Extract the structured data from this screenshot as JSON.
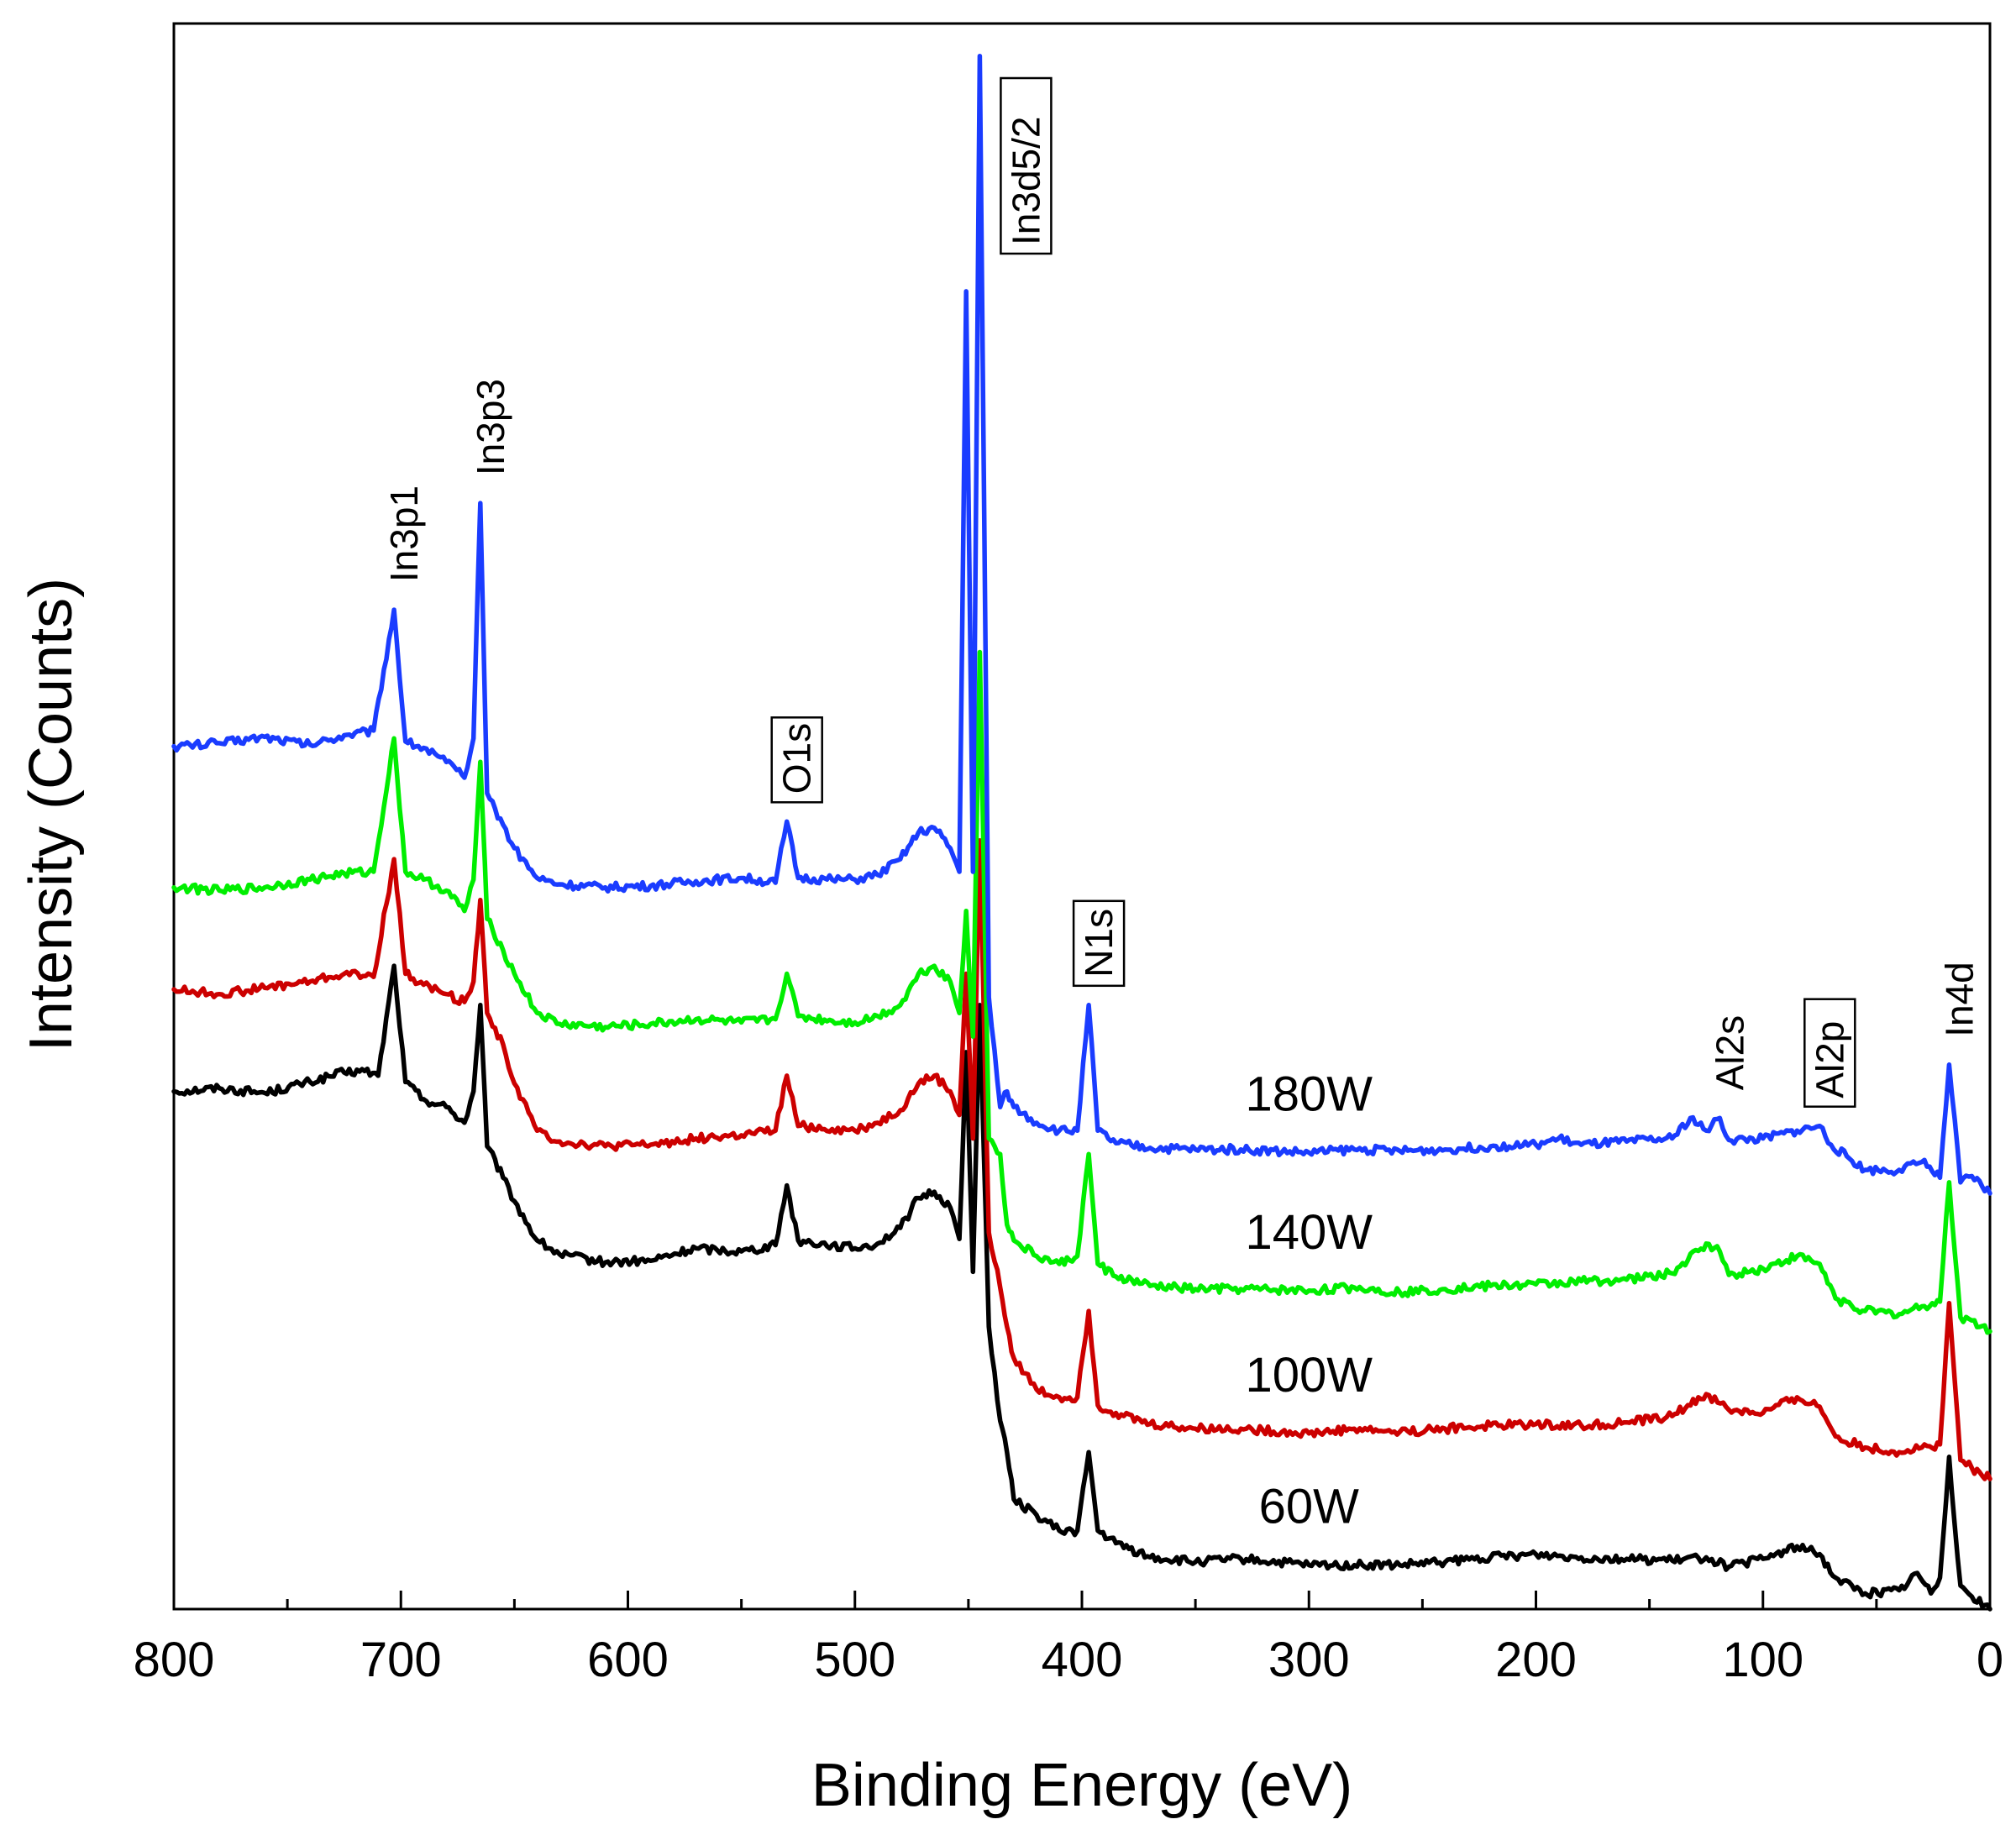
{
  "chart_data": {
    "type": "line",
    "xlabel": "Binding Energy (eV)",
    "ylabel": "Intensity (Counts)",
    "xlim": [
      800,
      0
    ],
    "x_reversed": true,
    "ylim": [
      0,
      100
    ],
    "y_ticks_labeled": false,
    "x_ticks": [
      800,
      700,
      600,
      500,
      400,
      300,
      200,
      100,
      0
    ],
    "x_tick_labels": [
      "800",
      "700",
      "600",
      "500",
      "400",
      "300",
      "200",
      "100",
      "0"
    ],
    "grid": false,
    "legend": "inline labels",
    "series": [
      {
        "name": "60W",
        "color": "#000000",
        "label_x": 300,
        "points": [
          [
            800,
            33.0
          ],
          [
            780,
            33.2
          ],
          [
            760,
            32.9
          ],
          [
            740,
            33.6
          ],
          [
            725,
            34.2
          ],
          [
            716,
            34.3
          ],
          [
            710,
            34.0
          ],
          [
            703,
            41.0
          ],
          [
            698,
            33.6
          ],
          [
            690,
            32.5
          ],
          [
            680,
            32.0
          ],
          [
            672,
            31.0
          ],
          [
            668,
            33.0
          ],
          [
            665,
            38.5
          ],
          [
            662,
            29.5
          ],
          [
            655,
            27.5
          ],
          [
            650,
            26.0
          ],
          [
            640,
            23.5
          ],
          [
            630,
            22.6
          ],
          [
            610,
            22.1
          ],
          [
            590,
            22.2
          ],
          [
            570,
            23.0
          ],
          [
            550,
            22.8
          ],
          [
            535,
            23.2
          ],
          [
            530,
            27.0
          ],
          [
            525,
            23.5
          ],
          [
            510,
            23.2
          ],
          [
            500,
            23.0
          ],
          [
            490,
            23.3
          ],
          [
            480,
            24.3
          ],
          [
            472,
            26.2
          ],
          [
            465,
            26.6
          ],
          [
            458,
            25.6
          ],
          [
            454,
            23.6
          ],
          [
            451,
            35.5
          ],
          [
            448,
            21.5
          ],
          [
            445,
            38.5
          ],
          [
            441,
            18.0
          ],
          [
            436,
            12.0
          ],
          [
            433,
            10.0
          ],
          [
            430,
            7.0
          ],
          [
            420,
            6.0
          ],
          [
            410,
            5.0
          ],
          [
            402,
            5.0
          ],
          [
            397,
            10.0
          ],
          [
            393,
            5.0
          ],
          [
            385,
            4.2
          ],
          [
            370,
            3.3
          ],
          [
            350,
            3.0
          ],
          [
            330,
            3.2
          ],
          [
            300,
            2.8
          ],
          [
            280,
            2.8
          ],
          [
            260,
            2.8
          ],
          [
            240,
            3.0
          ],
          [
            220,
            3.3
          ],
          [
            200,
            3.5
          ],
          [
            180,
            3.3
          ],
          [
            160,
            3.2
          ],
          [
            140,
            3.1
          ],
          [
            125,
            3.3
          ],
          [
            115,
            2.7
          ],
          [
            100,
            3.2
          ],
          [
            85,
            4.0
          ],
          [
            75,
            3.5
          ],
          [
            68,
            2.0
          ],
          [
            55,
            1.0
          ],
          [
            40,
            1.2
          ],
          [
            32,
            2.3
          ],
          [
            26,
            1.0
          ],
          [
            22,
            2.0
          ],
          [
            18,
            9.7
          ],
          [
            13,
            1.5
          ],
          [
            8,
            0.8
          ],
          [
            0,
            0.0
          ]
        ]
      },
      {
        "name": "100W",
        "color": "#cc0000",
        "label_x": 300,
        "points": [
          [
            800,
            39.5
          ],
          [
            780,
            39.2
          ],
          [
            760,
            39.6
          ],
          [
            740,
            40.0
          ],
          [
            725,
            40.5
          ],
          [
            712,
            40.3
          ],
          [
            703,
            47.8
          ],
          [
            698,
            40.5
          ],
          [
            690,
            39.8
          ],
          [
            680,
            39.2
          ],
          [
            672,
            38.7
          ],
          [
            668,
            40.0
          ],
          [
            665,
            45.2
          ],
          [
            662,
            38.0
          ],
          [
            655,
            36.0
          ],
          [
            650,
            33.5
          ],
          [
            640,
            30.5
          ],
          [
            630,
            29.8
          ],
          [
            610,
            29.5
          ],
          [
            590,
            29.6
          ],
          [
            570,
            30.0
          ],
          [
            550,
            30.2
          ],
          [
            535,
            30.5
          ],
          [
            530,
            34.0
          ],
          [
            525,
            30.8
          ],
          [
            510,
            30.6
          ],
          [
            500,
            30.5
          ],
          [
            490,
            31.0
          ],
          [
            480,
            31.8
          ],
          [
            472,
            33.5
          ],
          [
            465,
            34.0
          ],
          [
            458,
            33.0
          ],
          [
            454,
            31.5
          ],
          [
            451,
            40.5
          ],
          [
            448,
            30.0
          ],
          [
            445,
            49.0
          ],
          [
            441,
            24.0
          ],
          [
            436,
            20.5
          ],
          [
            433,
            18.0
          ],
          [
            430,
            16.0
          ],
          [
            420,
            14.0
          ],
          [
            410,
            13.5
          ],
          [
            402,
            13.5
          ],
          [
            397,
            19.0
          ],
          [
            393,
            13.0
          ],
          [
            385,
            12.5
          ],
          [
            370,
            11.8
          ],
          [
            350,
            11.5
          ],
          [
            330,
            11.5
          ],
          [
            300,
            11.2
          ],
          [
            280,
            11.5
          ],
          [
            260,
            11.3
          ],
          [
            240,
            11.5
          ],
          [
            220,
            11.7
          ],
          [
            200,
            11.8
          ],
          [
            180,
            11.7
          ],
          [
            160,
            11.9
          ],
          [
            140,
            12.3
          ],
          [
            125,
            13.7
          ],
          [
            115,
            12.7
          ],
          [
            100,
            12.5
          ],
          [
            85,
            13.5
          ],
          [
            75,
            12.9
          ],
          [
            68,
            11.0
          ],
          [
            55,
            10.3
          ],
          [
            40,
            10.0
          ],
          [
            30,
            10.3
          ],
          [
            22,
            10.5
          ],
          [
            18,
            19.5
          ],
          [
            13,
            9.5
          ],
          [
            8,
            9.0
          ],
          [
            0,
            8.3
          ]
        ]
      },
      {
        "name": "140W",
        "color": "#00ee00",
        "label_x": 300,
        "points": [
          [
            800,
            46.0
          ],
          [
            780,
            45.8
          ],
          [
            760,
            46.0
          ],
          [
            740,
            46.5
          ],
          [
            725,
            46.9
          ],
          [
            712,
            47.0
          ],
          [
            703,
            55.5
          ],
          [
            698,
            47.0
          ],
          [
            690,
            46.5
          ],
          [
            680,
            45.8
          ],
          [
            672,
            44.5
          ],
          [
            668,
            46.5
          ],
          [
            665,
            54.0
          ],
          [
            662,
            44.0
          ],
          [
            655,
            42.0
          ],
          [
            650,
            40.5
          ],
          [
            640,
            38.0
          ],
          [
            630,
            37.3
          ],
          [
            610,
            37.1
          ],
          [
            590,
            37.3
          ],
          [
            570,
            37.6
          ],
          [
            550,
            37.4
          ],
          [
            535,
            37.6
          ],
          [
            530,
            40.5
          ],
          [
            525,
            37.8
          ],
          [
            510,
            37.5
          ],
          [
            500,
            37.4
          ],
          [
            490,
            37.8
          ],
          [
            480,
            38.5
          ],
          [
            472,
            40.5
          ],
          [
            465,
            41.0
          ],
          [
            458,
            40.0
          ],
          [
            454,
            38.0
          ],
          [
            451,
            44.5
          ],
          [
            448,
            36.5
          ],
          [
            445,
            61.0
          ],
          [
            441,
            30.0
          ],
          [
            436,
            29.0
          ],
          [
            433,
            24.5
          ],
          [
            430,
            23.5
          ],
          [
            420,
            22.5
          ],
          [
            410,
            22.0
          ],
          [
            402,
            22.5
          ],
          [
            397,
            29.0
          ],
          [
            393,
            22.0
          ],
          [
            385,
            21.2
          ],
          [
            370,
            20.6
          ],
          [
            350,
            20.4
          ],
          [
            330,
            20.4
          ],
          [
            300,
            20.3
          ],
          [
            280,
            20.5
          ],
          [
            260,
            20.2
          ],
          [
            240,
            20.4
          ],
          [
            220,
            20.6
          ],
          [
            200,
            20.7
          ],
          [
            180,
            20.9
          ],
          [
            160,
            21.0
          ],
          [
            140,
            21.4
          ],
          [
            125,
            23.3
          ],
          [
            119,
            22.8
          ],
          [
            115,
            21.3
          ],
          [
            100,
            21.7
          ],
          [
            85,
            22.5
          ],
          [
            75,
            22.0
          ],
          [
            68,
            19.8
          ],
          [
            55,
            19.0
          ],
          [
            40,
            18.8
          ],
          [
            30,
            19.3
          ],
          [
            22,
            19.6
          ],
          [
            18,
            27.2
          ],
          [
            13,
            18.6
          ],
          [
            8,
            18.4
          ],
          [
            0,
            17.7
          ]
        ]
      },
      {
        "name": "180W",
        "color": "#1a3cff",
        "label_x": 300,
        "points": [
          [
            800,
            55.0
          ],
          [
            780,
            55.2
          ],
          [
            760,
            55.6
          ],
          [
            740,
            55.1
          ],
          [
            725,
            55.7
          ],
          [
            712,
            56.0
          ],
          [
            703,
            63.7
          ],
          [
            698,
            55.3
          ],
          [
            690,
            54.9
          ],
          [
            680,
            54.0
          ],
          [
            672,
            53.0
          ],
          [
            668,
            55.5
          ],
          [
            665,
            70.5
          ],
          [
            662,
            52.0
          ],
          [
            655,
            50.0
          ],
          [
            650,
            48.5
          ],
          [
            640,
            46.6
          ],
          [
            630,
            46.2
          ],
          [
            610,
            46.0
          ],
          [
            590,
            46.1
          ],
          [
            570,
            46.4
          ],
          [
            550,
            46.6
          ],
          [
            535,
            46.3
          ],
          [
            530,
            50.2
          ],
          [
            525,
            46.6
          ],
          [
            510,
            46.5
          ],
          [
            500,
            46.5
          ],
          [
            490,
            46.8
          ],
          [
            480,
            47.8
          ],
          [
            472,
            49.5
          ],
          [
            465,
            49.8
          ],
          [
            458,
            48.5
          ],
          [
            454,
            47.0
          ],
          [
            451,
            84.0
          ],
          [
            448,
            47.0
          ],
          [
            445,
            99.0
          ],
          [
            441,
            39.0
          ],
          [
            436,
            32.0
          ],
          [
            433,
            33.0
          ],
          [
            430,
            32.0
          ],
          [
            420,
            31.0
          ],
          [
            410,
            30.5
          ],
          [
            402,
            30.5
          ],
          [
            397,
            38.5
          ],
          [
            393,
            30.5
          ],
          [
            385,
            29.7
          ],
          [
            370,
            29.4
          ],
          [
            350,
            29.3
          ],
          [
            330,
            29.3
          ],
          [
            300,
            29.1
          ],
          [
            280,
            29.3
          ],
          [
            260,
            29.2
          ],
          [
            240,
            29.3
          ],
          [
            220,
            29.5
          ],
          [
            200,
            29.6
          ],
          [
            190,
            30.0
          ],
          [
            180,
            29.6
          ],
          [
            160,
            29.8
          ],
          [
            140,
            30.0
          ],
          [
            132,
            31.3
          ],
          [
            125,
            30.5
          ],
          [
            119,
            31.3
          ],
          [
            115,
            29.9
          ],
          [
            100,
            30.0
          ],
          [
            85,
            30.5
          ],
          [
            75,
            30.8
          ],
          [
            70,
            29.6
          ],
          [
            55,
            28.0
          ],
          [
            40,
            28.0
          ],
          [
            30,
            28.5
          ],
          [
            22,
            27.5
          ],
          [
            18,
            34.7
          ],
          [
            13,
            27.2
          ],
          [
            8,
            27.6
          ],
          [
            0,
            26.5
          ]
        ]
      }
    ],
    "annotations": [
      {
        "text": "In3p1",
        "x": 703,
        "boxed": false
      },
      {
        "text": "In3p3",
        "x": 665,
        "boxed": false
      },
      {
        "text": "O1s",
        "x": 530,
        "boxed": true
      },
      {
        "text": "In3d5/2",
        "x": 445,
        "boxed": true
      },
      {
        "text": "N1s",
        "x": 397,
        "boxed": true
      },
      {
        "text": "Al2s",
        "x": 119,
        "boxed": false
      },
      {
        "text": "Al2p",
        "x": 75,
        "boxed": true
      },
      {
        "text": "In4d",
        "x": 18,
        "boxed": false
      }
    ]
  }
}
